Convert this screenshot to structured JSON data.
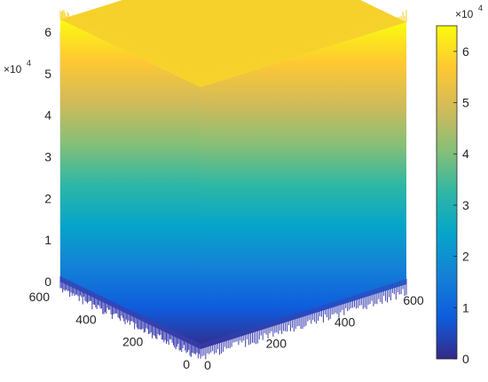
{
  "chart_data": {
    "type": "surface",
    "title": "",
    "xlabel": "",
    "ylabel": "",
    "zlabel": "",
    "view": "3d-isometric",
    "grid": true,
    "x_range": [
      0,
      600
    ],
    "y_range": [
      0,
      600
    ],
    "z_range": [
      0,
      60000
    ],
    "x_ticks": [
      "0",
      "200",
      "400",
      "600"
    ],
    "y_ticks": [
      "0",
      "200",
      "400",
      "600"
    ],
    "z_ticks": [
      "0",
      "1",
      "2",
      "3",
      "4",
      "5",
      "6"
    ],
    "z_exponent_label": "×10",
    "z_exponent_power": "4",
    "surface_description": "Dense noisy surface forming a box/column; values rise from about 0 at the bottom edges to about 62000-64000 on top, with jagged noise at top and bottom edges.",
    "surface_max_approx": 63000,
    "surface_min_approx": 0,
    "colorbar": {
      "colormap": "parula",
      "range": [
        0,
        65000
      ],
      "ticks": [
        "0",
        "1",
        "2",
        "3",
        "4",
        "5",
        "6"
      ],
      "exponent_label": "×10",
      "exponent_power": "4",
      "position": "right"
    },
    "colors": {
      "parula_stops": [
        "#352a87",
        "#0f5cdd",
        "#1481d6",
        "#06a4ca",
        "#2eb7a4",
        "#87bf77",
        "#d1bb59",
        "#fec832",
        "#f9fb0e"
      ]
    }
  }
}
